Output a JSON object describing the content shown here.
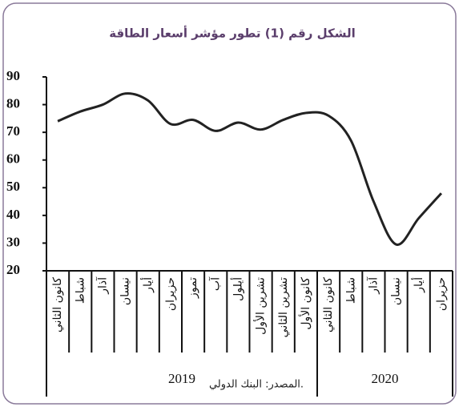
{
  "chart_data": {
    "type": "line",
    "title": "الشكل رقم (1) تطور مؤشر أسعار الطاقة",
    "category_groups": [
      {
        "label": "2019",
        "categories": [
          "كانون الثاني",
          "شباط",
          "آذار",
          "نيسان",
          "أيار",
          "حزيران",
          "تموز",
          "آب",
          "أيلول",
          "تشرين الأول",
          "تشرين الثاني",
          "كانون الأول"
        ]
      },
      {
        "label": "2020",
        "categories": [
          "كانون الثاني",
          "شباط",
          "آذار",
          "نيسان",
          "أيار",
          "حزيران"
        ]
      }
    ],
    "values": [
      74,
      77.5,
      80,
      84,
      81.5,
      73,
      74.5,
      70.5,
      73.5,
      71,
      74.5,
      77,
      76,
      67,
      45,
      29.5,
      39,
      48
    ],
    "color": "#222222",
    "ylim": [
      20,
      90
    ],
    "yticks": [
      20,
      30,
      40,
      50,
      60,
      70,
      80,
      90
    ],
    "source": "المصدر: البنك الدولي."
  }
}
